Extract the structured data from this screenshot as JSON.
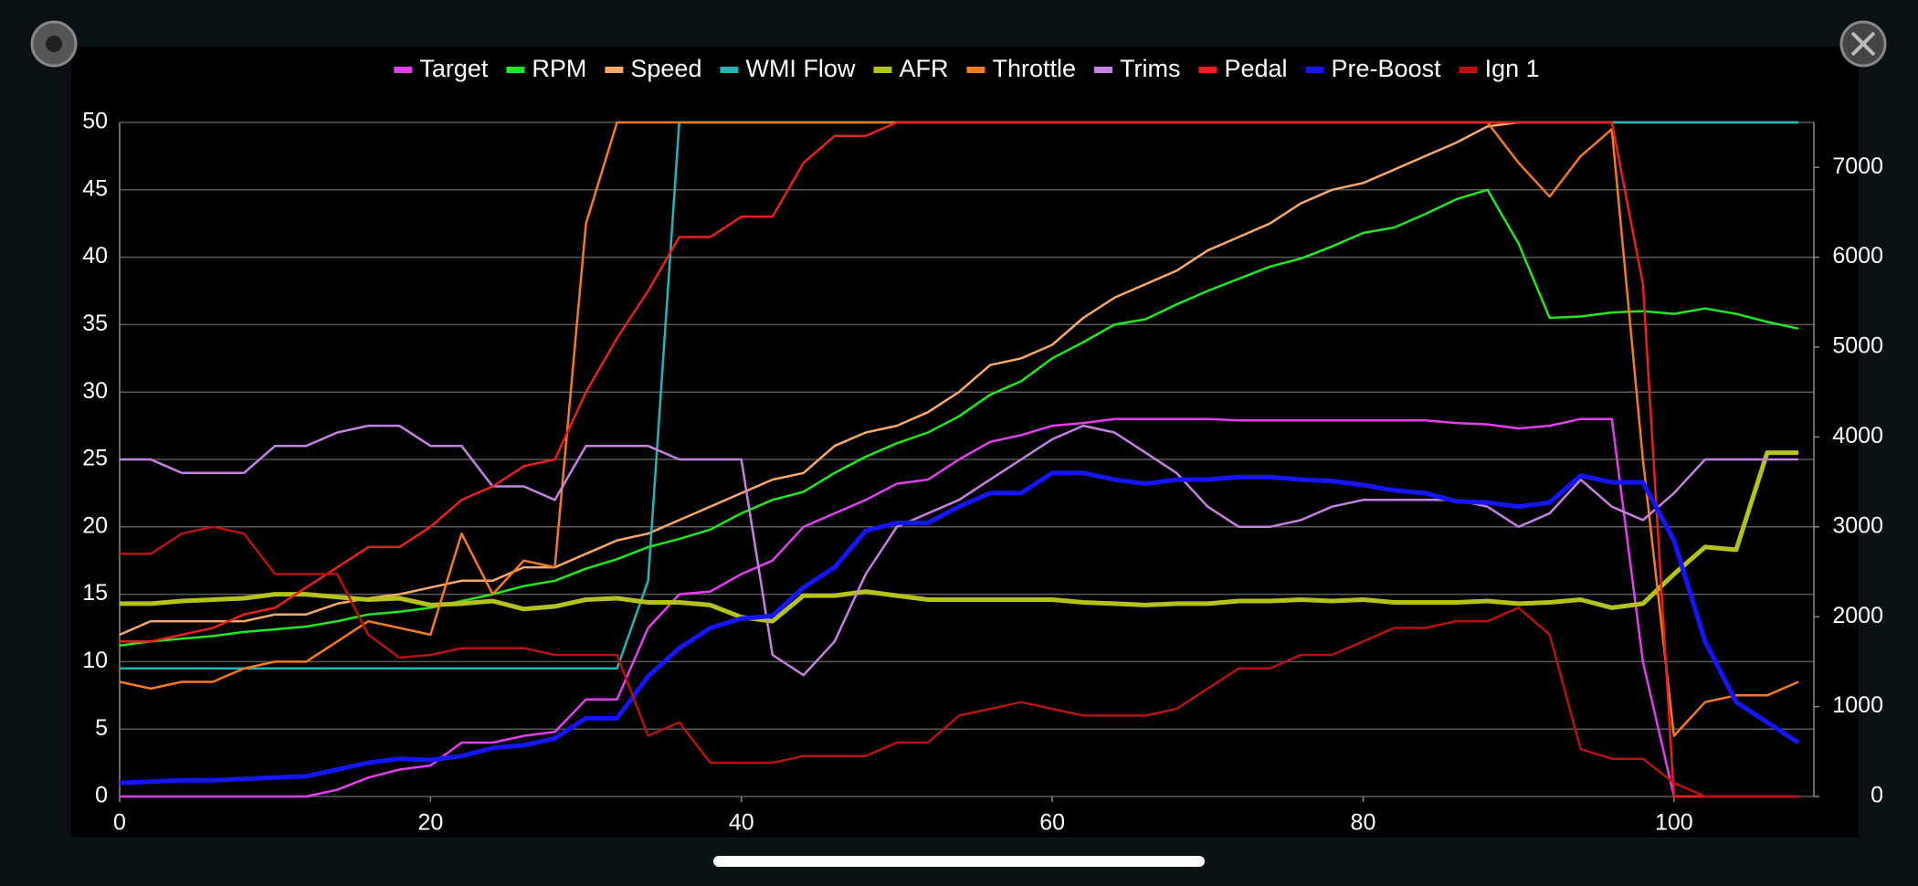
{
  "chart_data": {
    "type": "line",
    "x": [
      0,
      2,
      4,
      6,
      8,
      10,
      12,
      14,
      16,
      18,
      20,
      22,
      24,
      26,
      28,
      30,
      32,
      34,
      36,
      38,
      40,
      42,
      44,
      46,
      48,
      50,
      52,
      54,
      56,
      58,
      60,
      62,
      64,
      66,
      68,
      70,
      72,
      74,
      76,
      78,
      80,
      82,
      84,
      86,
      88,
      90,
      92,
      94,
      96,
      98,
      100,
      102,
      104,
      106,
      108
    ],
    "xlim": [
      0,
      109
    ],
    "xticks": [
      0,
      20,
      40,
      60,
      80,
      100
    ],
    "ylim": [
      0,
      50
    ],
    "yticks": [
      0,
      5,
      10,
      15,
      20,
      25,
      30,
      35,
      40,
      45,
      50
    ],
    "y2lim": [
      0,
      7500
    ],
    "y2ticks": [
      0,
      1000,
      2000,
      3000,
      4000,
      5000,
      6000,
      7000
    ],
    "grid": true,
    "legend": "top",
    "series": [
      {
        "name": "Target",
        "color": "#e33ff0",
        "values": [
          0,
          0,
          0,
          0,
          0,
          0,
          0,
          0.5,
          1.4,
          2,
          2.3,
          4,
          4,
          4.5,
          4.8,
          7.2,
          7.2,
          12.5,
          15,
          15.2,
          16.5,
          17.5,
          20,
          21,
          22,
          23.2,
          23.5,
          25,
          26.3,
          26.8,
          27.5,
          27.7,
          28,
          28,
          28,
          28,
          27.9,
          27.9,
          27.9,
          27.9,
          27.9,
          27.9,
          27.9,
          27.7,
          27.6,
          27.3,
          27.5,
          28,
          28,
          10,
          0,
          0,
          0,
          0,
          0
        ]
      },
      {
        "name": "RPM",
        "color": "#22e822",
        "axis": "y2",
        "values": [
          1680,
          1725,
          1755,
          1785,
          1830,
          1860,
          1890,
          1950,
          2025,
          2055,
          2100,
          2175,
          2250,
          2340,
          2400,
          2535,
          2640,
          2775,
          2865,
          2970,
          3150,
          3300,
          3390,
          3600,
          3780,
          3930,
          4050,
          4230,
          4470,
          4620,
          4875,
          5055,
          5250,
          5310,
          5475,
          5625,
          5760,
          5895,
          5985,
          6120,
          6270,
          6330,
          6480,
          6645,
          6750,
          6150,
          5325,
          5340,
          5385,
          5400,
          5370,
          5430,
          5370,
          5280,
          5205
        ]
      },
      {
        "name": "Speed",
        "color": "#f6a96a",
        "values": [
          12,
          13,
          13,
          13,
          13,
          13.5,
          13.5,
          14.3,
          14.7,
          15,
          15.5,
          16,
          16,
          17,
          17,
          18,
          19,
          19.5,
          20.5,
          21.5,
          22.5,
          23.5,
          24,
          26,
          27,
          27.5,
          28.5,
          30,
          32,
          32.5,
          33.5,
          35.5,
          37,
          38,
          39,
          40.5,
          41.5,
          42.5,
          44,
          45,
          45.5,
          46.5,
          47.5,
          48.5,
          49.7,
          50,
          50,
          50,
          50,
          50,
          50,
          50,
          50,
          50,
          50
        ]
      },
      {
        "name": "WMI Flow",
        "color": "#27b4b8",
        "values": [
          9.5,
          9.5,
          9.5,
          9.5,
          9.5,
          9.5,
          9.5,
          9.5,
          9.5,
          9.5,
          9.5,
          9.5,
          9.5,
          9.5,
          9.5,
          9.5,
          9.5,
          16,
          50,
          50,
          50,
          50,
          50,
          50,
          50,
          50,
          50,
          50,
          50,
          50,
          50,
          50,
          50,
          50,
          50,
          50,
          50,
          50,
          50,
          50,
          50,
          50,
          50,
          50,
          50,
          50,
          50,
          50,
          50,
          50,
          50,
          50,
          50,
          50,
          50
        ]
      },
      {
        "name": "AFR",
        "color": "#b5c21b",
        "values": [
          14.3,
          14.3,
          14.5,
          14.6,
          14.7,
          15,
          15,
          14.8,
          14.6,
          14.7,
          14.2,
          14.3,
          14.5,
          13.9,
          14.1,
          14.6,
          14.7,
          14.4,
          14.4,
          14.2,
          13.3,
          13,
          14.9,
          14.9,
          15.2,
          14.9,
          14.6,
          14.6,
          14.6,
          14.6,
          14.6,
          14.4,
          14.3,
          14.2,
          14.3,
          14.3,
          14.5,
          14.5,
          14.6,
          14.5,
          14.6,
          14.4,
          14.4,
          14.4,
          14.5,
          14.3,
          14.4,
          14.6,
          14,
          14.3,
          16.5,
          18.5,
          18.3,
          25.5,
          25.5
        ]
      },
      {
        "name": "Throttle",
        "color": "#f57a22",
        "values": [
          8.5,
          8,
          8.5,
          8.5,
          9.5,
          10,
          10,
          11.5,
          13,
          12.5,
          12,
          19.5,
          15,
          17.5,
          17,
          42.5,
          50,
          50,
          50,
          50,
          50,
          50,
          50,
          50,
          50,
          50,
          50,
          50,
          50,
          50,
          50,
          50,
          50,
          50,
          50,
          50,
          50,
          50,
          50,
          50,
          50,
          50,
          50,
          50,
          50,
          47,
          44.5,
          47.5,
          49.5,
          25,
          4.5,
          7,
          7.5,
          7.5,
          8.5
        ]
      },
      {
        "name": "Trims",
        "color": "#c482e2",
        "values": [
          25,
          25,
          24,
          24,
          24,
          26,
          26,
          27,
          27.5,
          27.5,
          26,
          26,
          23,
          23,
          22,
          26,
          26,
          26,
          25,
          25,
          25,
          10.5,
          9,
          11.5,
          16.5,
          20,
          21,
          22,
          23.5,
          25,
          26.5,
          27.5,
          27,
          25.5,
          24,
          21.5,
          20,
          20,
          20.5,
          21.5,
          22,
          22,
          22,
          22,
          21.5,
          20,
          21,
          23.5,
          21.5,
          20.5,
          22.5,
          25,
          25,
          25,
          25
        ]
      },
      {
        "name": "Pedal",
        "color": "#e8201e",
        "values": [
          11.5,
          11.5,
          12,
          12.5,
          13.5,
          14,
          15.5,
          17,
          18.5,
          18.5,
          20,
          22,
          23,
          24.5,
          25,
          30,
          34,
          37.5,
          41.5,
          41.5,
          43,
          43,
          47,
          49,
          49,
          50,
          50,
          50,
          50,
          50,
          50,
          50,
          50,
          50,
          50,
          50,
          50,
          50,
          50,
          50,
          50,
          50,
          50,
          50,
          50,
          50,
          50,
          50,
          50,
          38,
          0,
          0,
          0,
          0,
          0
        ]
      },
      {
        "name": "Pre-Boost",
        "color": "#1515ff",
        "values": [
          1,
          1.1,
          1.2,
          1.2,
          1.3,
          1.4,
          1.5,
          2,
          2.5,
          2.8,
          2.7,
          3,
          3.6,
          3.8,
          4.3,
          5.8,
          5.8,
          8.9,
          11,
          12.5,
          13.2,
          13.4,
          15.5,
          17,
          19.7,
          20.3,
          20.3,
          21.5,
          22.5,
          22.5,
          24,
          24,
          23.5,
          23.2,
          23.5,
          23.5,
          23.7,
          23.7,
          23.5,
          23.4,
          23.1,
          22.7,
          22.5,
          21.9,
          21.8,
          21.5,
          21.8,
          23.8,
          23.3,
          23.3,
          19,
          11.5,
          7,
          5.5,
          4
        ]
      },
      {
        "name": "Ign 1",
        "color": "#b81212",
        "values": [
          18,
          18,
          19.5,
          20,
          19.5,
          16.5,
          16.5,
          16.5,
          12,
          10.3,
          10.5,
          11,
          11,
          11,
          10.5,
          10.5,
          10.5,
          4.5,
          5.5,
          2.5,
          2.5,
          2.5,
          3,
          3,
          3,
          4,
          4,
          6,
          6.5,
          7,
          6.5,
          6,
          6,
          6,
          6.5,
          8,
          9.5,
          9.5,
          10.5,
          10.5,
          11.5,
          12.5,
          12.5,
          13,
          13,
          14,
          12,
          3.5,
          2.8,
          2.8,
          1,
          0,
          0,
          0,
          0
        ]
      }
    ]
  }
}
